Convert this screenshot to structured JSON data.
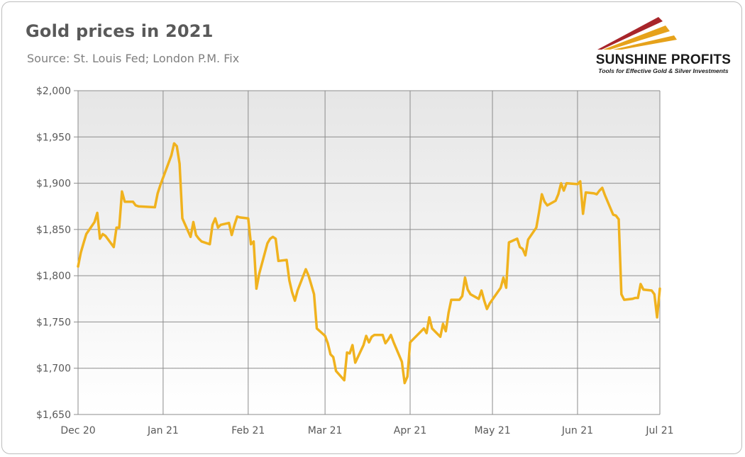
{
  "title": "Gold prices in 2021",
  "subtitle": "Source: St. Louis Fed; London P.M. Fix",
  "logo": {
    "name": "SUNSHINE PROFITS",
    "tagline": "Tools for Effective Gold & Silver Investments"
  },
  "colors": {
    "line": "#f0b21e",
    "plot_bg_top": "#e6e6e6",
    "plot_bg_bottom": "#ffffff",
    "grid": "#8c8c8c",
    "logo_red": "#a8252a",
    "logo_gold": "#e6a21b"
  },
  "chart_data": {
    "type": "line",
    "title": "Gold prices in 2021",
    "subtitle": "Source: St. Louis Fed; London P.M. Fix",
    "xlabel": "",
    "ylabel": "",
    "ylim": [
      1650,
      2000
    ],
    "y_ticks": [
      1650,
      1700,
      1750,
      1800,
      1850,
      1900,
      1950,
      2000
    ],
    "y_tick_labels": [
      "$1,650",
      "$1,700",
      "$1,750",
      "$1,800",
      "$1,850",
      "$1,900",
      "$1,950",
      "$2,000"
    ],
    "x_ticks": [
      {
        "label": "Dec 20",
        "date": "2020-12-01"
      },
      {
        "label": "Jan 21",
        "date": "2021-01-01"
      },
      {
        "label": "Feb 21",
        "date": "2021-02-01"
      },
      {
        "label": "Mar 21",
        "date": "2021-03-01"
      },
      {
        "label": "Apr 21",
        "date": "2021-04-01"
      },
      {
        "label": "May 21",
        "date": "2021-05-01"
      },
      {
        "label": "Jun 21",
        "date": "2021-06-01"
      },
      {
        "label": "Jul 21",
        "date": "2021-07-01"
      }
    ],
    "xlim": [
      "2020-12-01",
      "2021-07-01"
    ],
    "grid": true,
    "legend": "none",
    "series": [
      {
        "points": [
          [
            "2020-12-01",
            1810
          ],
          [
            "2020-12-02",
            1825
          ],
          [
            "2020-12-03",
            1835
          ],
          [
            "2020-12-04",
            1845
          ],
          [
            "2020-12-07",
            1858
          ],
          [
            "2020-12-08",
            1868
          ],
          [
            "2020-12-09",
            1840
          ],
          [
            "2020-12-10",
            1845
          ],
          [
            "2020-12-11",
            1843
          ],
          [
            "2020-12-14",
            1831
          ],
          [
            "2020-12-15",
            1852
          ],
          [
            "2020-12-16",
            1852
          ],
          [
            "2020-12-17",
            1891
          ],
          [
            "2020-12-18",
            1880
          ],
          [
            "2020-12-21",
            1880
          ],
          [
            "2020-12-22",
            1876
          ],
          [
            "2020-12-23",
            1875
          ],
          [
            "2020-12-29",
            1874
          ],
          [
            "2020-12-30",
            1889
          ],
          [
            "2020-12-31",
            1898
          ],
          [
            "2021-01-04",
            1930
          ],
          [
            "2021-01-05",
            1943
          ],
          [
            "2021-01-06",
            1940
          ],
          [
            "2021-01-07",
            1921
          ],
          [
            "2021-01-08",
            1862
          ],
          [
            "2021-01-11",
            1842
          ],
          [
            "2021-01-12",
            1858
          ],
          [
            "2021-01-13",
            1844
          ],
          [
            "2021-01-14",
            1840
          ],
          [
            "2021-01-15",
            1837
          ],
          [
            "2021-01-18",
            1834
          ],
          [
            "2021-01-19",
            1855
          ],
          [
            "2021-01-20",
            1862
          ],
          [
            "2021-01-21",
            1852
          ],
          [
            "2021-01-22",
            1855
          ],
          [
            "2021-01-25",
            1857
          ],
          [
            "2021-01-26",
            1844
          ],
          [
            "2021-01-27",
            1855
          ],
          [
            "2021-01-28",
            1864
          ],
          [
            "2021-01-29",
            1863
          ],
          [
            "2021-02-01",
            1862
          ],
          [
            "2021-02-02",
            1834
          ],
          [
            "2021-02-03",
            1837
          ],
          [
            "2021-02-04",
            1786
          ],
          [
            "2021-02-05",
            1802
          ],
          [
            "2021-02-08",
            1835
          ],
          [
            "2021-02-09",
            1840
          ],
          [
            "2021-02-10",
            1842
          ],
          [
            "2021-02-11",
            1840
          ],
          [
            "2021-02-12",
            1816
          ],
          [
            "2021-02-15",
            1817
          ],
          [
            "2021-02-16",
            1795
          ],
          [
            "2021-02-17",
            1782
          ],
          [
            "2021-02-18",
            1773
          ],
          [
            "2021-02-19",
            1784
          ],
          [
            "2021-02-22",
            1807
          ],
          [
            "2021-02-23",
            1800
          ],
          [
            "2021-02-24",
            1790
          ],
          [
            "2021-02-25",
            1780
          ],
          [
            "2021-02-26",
            1743
          ],
          [
            "2021-03-01",
            1735
          ],
          [
            "2021-03-02",
            1727
          ],
          [
            "2021-03-03",
            1715
          ],
          [
            "2021-03-04",
            1712
          ],
          [
            "2021-03-05",
            1697
          ],
          [
            "2021-03-08",
            1687
          ],
          [
            "2021-03-09",
            1717
          ],
          [
            "2021-03-10",
            1716
          ],
          [
            "2021-03-11",
            1725
          ],
          [
            "2021-03-12",
            1706
          ],
          [
            "2021-03-15",
            1725
          ],
          [
            "2021-03-16",
            1735
          ],
          [
            "2021-03-17",
            1728
          ],
          [
            "2021-03-18",
            1734
          ],
          [
            "2021-03-19",
            1736
          ],
          [
            "2021-03-22",
            1736
          ],
          [
            "2021-03-23",
            1727
          ],
          [
            "2021-03-24",
            1731
          ],
          [
            "2021-03-25",
            1736
          ],
          [
            "2021-03-26",
            1728
          ],
          [
            "2021-03-29",
            1707
          ],
          [
            "2021-03-30",
            1684
          ],
          [
            "2021-03-31",
            1691
          ],
          [
            "2021-04-01",
            1728
          ],
          [
            "2021-04-06",
            1743
          ],
          [
            "2021-04-07",
            1738
          ],
          [
            "2021-04-08",
            1755
          ],
          [
            "2021-04-09",
            1743
          ],
          [
            "2021-04-12",
            1734
          ],
          [
            "2021-04-13",
            1748
          ],
          [
            "2021-04-14",
            1740
          ],
          [
            "2021-04-15",
            1760
          ],
          [
            "2021-04-16",
            1774
          ],
          [
            "2021-04-19",
            1774
          ],
          [
            "2021-04-20",
            1778
          ],
          [
            "2021-04-21",
            1798
          ],
          [
            "2021-04-22",
            1785
          ],
          [
            "2021-04-23",
            1780
          ],
          [
            "2021-04-26",
            1775
          ],
          [
            "2021-04-27",
            1784
          ],
          [
            "2021-04-28",
            1773
          ],
          [
            "2021-04-29",
            1764
          ],
          [
            "2021-04-30",
            1770
          ],
          [
            "2021-05-04",
            1787
          ],
          [
            "2021-05-05",
            1798
          ],
          [
            "2021-05-06",
            1787
          ],
          [
            "2021-05-07",
            1836
          ],
          [
            "2021-05-10",
            1840
          ],
          [
            "2021-05-11",
            1831
          ],
          [
            "2021-05-12",
            1829
          ],
          [
            "2021-05-13",
            1822
          ],
          [
            "2021-05-14",
            1839
          ],
          [
            "2021-05-17",
            1852
          ],
          [
            "2021-05-18",
            1869
          ],
          [
            "2021-05-19",
            1888
          ],
          [
            "2021-05-20",
            1880
          ],
          [
            "2021-05-21",
            1876
          ],
          [
            "2021-05-24",
            1881
          ],
          [
            "2021-05-25",
            1888
          ],
          [
            "2021-05-26",
            1900
          ],
          [
            "2021-05-27",
            1892
          ],
          [
            "2021-05-28",
            1900
          ],
          [
            "2021-06-01",
            1899
          ],
          [
            "2021-06-02",
            1902
          ],
          [
            "2021-06-03",
            1867
          ],
          [
            "2021-06-04",
            1890
          ],
          [
            "2021-06-07",
            1889
          ],
          [
            "2021-06-08",
            1888
          ],
          [
            "2021-06-09",
            1892
          ],
          [
            "2021-06-10",
            1895
          ],
          [
            "2021-06-11",
            1887
          ],
          [
            "2021-06-14",
            1866
          ],
          [
            "2021-06-15",
            1865
          ],
          [
            "2021-06-16",
            1861
          ],
          [
            "2021-06-17",
            1780
          ],
          [
            "2021-06-18",
            1774
          ],
          [
            "2021-06-21",
            1775
          ],
          [
            "2021-06-22",
            1776
          ],
          [
            "2021-06-23",
            1776
          ],
          [
            "2021-06-24",
            1791
          ],
          [
            "2021-06-25",
            1785
          ],
          [
            "2021-06-28",
            1784
          ],
          [
            "2021-06-29",
            1780
          ],
          [
            "2021-06-30",
            1755
          ],
          [
            "2021-07-01",
            1786
          ]
        ]
      }
    ]
  }
}
